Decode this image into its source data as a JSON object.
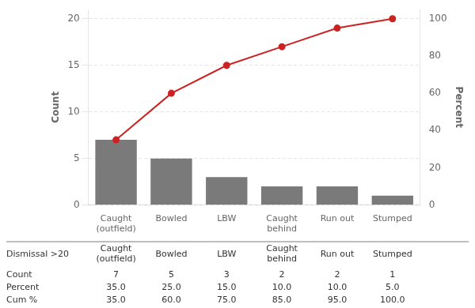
{
  "chart_data": {
    "type": "bar",
    "categories": [
      "Caught\n(outfield)",
      "Bowled",
      "LBW",
      "Caught\nbehind",
      "Run out",
      "Stumped"
    ],
    "series": [
      {
        "type": "bar",
        "color": "#7a7a7a",
        "values": [
          7,
          5,
          3,
          2,
          2,
          1
        ]
      },
      {
        "type": "line",
        "axis": "y2",
        "color": "#cc2222",
        "marker": "circle",
        "line_style": "solid",
        "values": [
          35.0,
          60.0,
          75.0,
          85.0,
          95.0,
          100.0
        ]
      }
    ],
    "ylabel": "Count",
    "y2label": "Percent",
    "ylim": [
      0,
      21
    ],
    "yticks": [
      0,
      5,
      10,
      15,
      20
    ],
    "y2lim": [
      0,
      105
    ],
    "y2ticks": [
      0,
      20,
      40,
      60,
      80,
      100
    ],
    "grid": true,
    "table": {
      "title": "Dismissal >20",
      "row_labels": [
        "Count",
        "Percent",
        "Cum %"
      ],
      "rows": [
        [
          "7",
          "5",
          "3",
          "2",
          "2",
          "1"
        ],
        [
          "35.0",
          "25.0",
          "15.0",
          "10.0",
          "10.0",
          "5.0"
        ],
        [
          "35.0",
          "60.0",
          "75.0",
          "85.0",
          "95.0",
          "100.0"
        ]
      ]
    }
  }
}
